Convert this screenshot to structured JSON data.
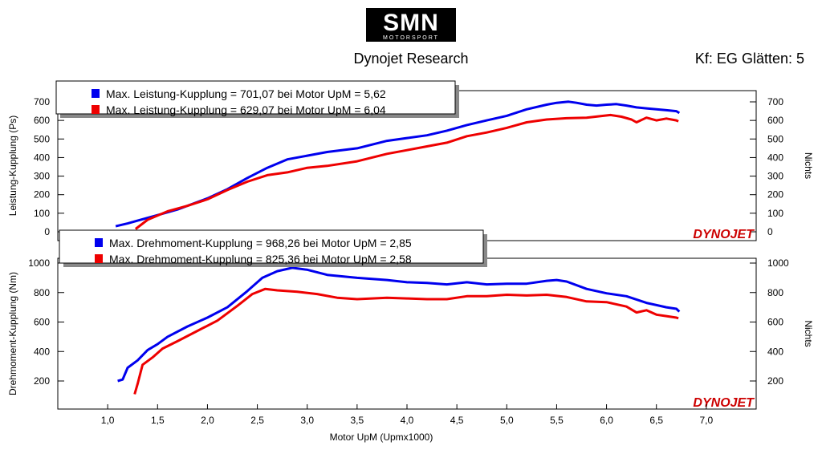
{
  "header": {
    "logo_text": "SMN",
    "logo_sub": "MOTORSPORT",
    "title": "Dynojet Research",
    "smoothing": "Kf: EG Glätten: 5"
  },
  "watermark": {
    "text": "DYNOJET"
  },
  "colors": {
    "blue": "#0000ee",
    "red": "#ee0000",
    "watermark": "#cc0000"
  },
  "chart_data": [
    {
      "type": "line",
      "ylabel": "Leistung-Kupplung (Ps)",
      "y2label": "Nichts",
      "ylim": [
        0,
        750
      ],
      "y_ticks": [
        "0",
        "100",
        "200",
        "300",
        "400",
        "500",
        "600",
        "700"
      ],
      "y2_ticks": [
        "0",
        "100",
        "200",
        "300",
        "400",
        "500",
        "600",
        "700"
      ],
      "legend": [
        "Max. Leistung-Kupplung = 701,07 bei Motor UpM = 5,62",
        "Max. Leistung-Kupplung = 629,07 bei Motor UpM = 6,04"
      ],
      "series": [
        {
          "color": "blue",
          "x": [
            1.08,
            1.2,
            1.3,
            1.5,
            1.7,
            2.0,
            2.2,
            2.4,
            2.6,
            2.8,
            3.0,
            3.2,
            3.5,
            3.8,
            4.0,
            4.2,
            4.4,
            4.6,
            4.8,
            5.0,
            5.2,
            5.4,
            5.5,
            5.62,
            5.7,
            5.8,
            5.9,
            6.0,
            6.1,
            6.2,
            6.3,
            6.4,
            6.5,
            6.6,
            6.7,
            6.73
          ],
          "y": [
            30,
            45,
            60,
            90,
            120,
            180,
            230,
            290,
            345,
            390,
            410,
            430,
            450,
            490,
            505,
            520,
            545,
            575,
            600,
            625,
            660,
            685,
            695,
            701,
            695,
            685,
            680,
            685,
            688,
            680,
            670,
            665,
            660,
            655,
            650,
            640
          ]
        },
        {
          "color": "red",
          "x": [
            1.28,
            1.4,
            1.6,
            1.8,
            2.0,
            2.2,
            2.4,
            2.6,
            2.8,
            3.0,
            3.2,
            3.5,
            3.8,
            4.0,
            4.2,
            4.4,
            4.6,
            4.8,
            5.0,
            5.2,
            5.4,
            5.6,
            5.8,
            6.04,
            6.15,
            6.25,
            6.3,
            6.4,
            6.5,
            6.6,
            6.7,
            6.72
          ],
          "y": [
            15,
            65,
            110,
            140,
            175,
            225,
            270,
            305,
            320,
            345,
            355,
            380,
            420,
            440,
            460,
            480,
            515,
            535,
            560,
            590,
            605,
            612,
            615,
            629,
            620,
            605,
            590,
            615,
            600,
            610,
            600,
            595
          ]
        }
      ]
    },
    {
      "type": "line",
      "ylabel": "Drehmoment-Kupplung (Nm)",
      "xlabel": "Motor UpM (Upmx1000)",
      "y2label": "Nichts",
      "ylim": [
        0,
        1000
      ],
      "xlim": [
        0.5,
        7.5
      ],
      "x_ticks": [
        "1,0",
        "1,5",
        "2,0",
        "2,5",
        "3,0",
        "3,5",
        "4,0",
        "4,5",
        "5,0",
        "5,5",
        "6,0",
        "6,5",
        "7,0"
      ],
      "y_ticks": [
        "200",
        "400",
        "600",
        "800",
        "1000"
      ],
      "y2_ticks": [
        "200",
        "400",
        "600",
        "800",
        "1000"
      ],
      "legend": [
        "Max. Drehmoment-Kupplung = 968,26 bei Motor UpM = 2,85",
        "Max. Drehmoment-Kupplung = 825,36 bei Motor UpM = 2,58"
      ],
      "series": [
        {
          "color": "blue",
          "x": [
            1.1,
            1.15,
            1.2,
            1.3,
            1.4,
            1.5,
            1.6,
            1.8,
            2.0,
            2.2,
            2.4,
            2.55,
            2.7,
            2.85,
            3.0,
            3.2,
            3.5,
            3.8,
            4.0,
            4.2,
            4.4,
            4.6,
            4.8,
            5.0,
            5.2,
            5.4,
            5.5,
            5.6,
            5.8,
            6.0,
            6.2,
            6.4,
            6.6,
            6.7,
            6.73
          ],
          "y": [
            200,
            210,
            290,
            340,
            410,
            450,
            500,
            570,
            630,
            700,
            810,
            900,
            945,
            968,
            955,
            920,
            900,
            885,
            870,
            865,
            855,
            870,
            855,
            860,
            860,
            880,
            885,
            875,
            825,
            795,
            775,
            730,
            700,
            690,
            670
          ]
        },
        {
          "color": "red",
          "x": [
            1.27,
            1.3,
            1.35,
            1.45,
            1.55,
            1.7,
            1.9,
            2.1,
            2.3,
            2.45,
            2.58,
            2.7,
            2.9,
            3.1,
            3.3,
            3.5,
            3.8,
            4.0,
            4.2,
            4.4,
            4.6,
            4.8,
            5.0,
            5.2,
            5.4,
            5.6,
            5.8,
            6.0,
            6.2,
            6.3,
            6.4,
            6.5,
            6.6,
            6.7,
            6.72
          ],
          "y": [
            110,
            180,
            310,
            360,
            420,
            470,
            540,
            610,
            710,
            790,
            825,
            815,
            805,
            790,
            765,
            755,
            765,
            760,
            755,
            755,
            775,
            775,
            785,
            780,
            785,
            770,
            740,
            735,
            705,
            665,
            680,
            650,
            640,
            630,
            625
          ]
        }
      ]
    }
  ]
}
